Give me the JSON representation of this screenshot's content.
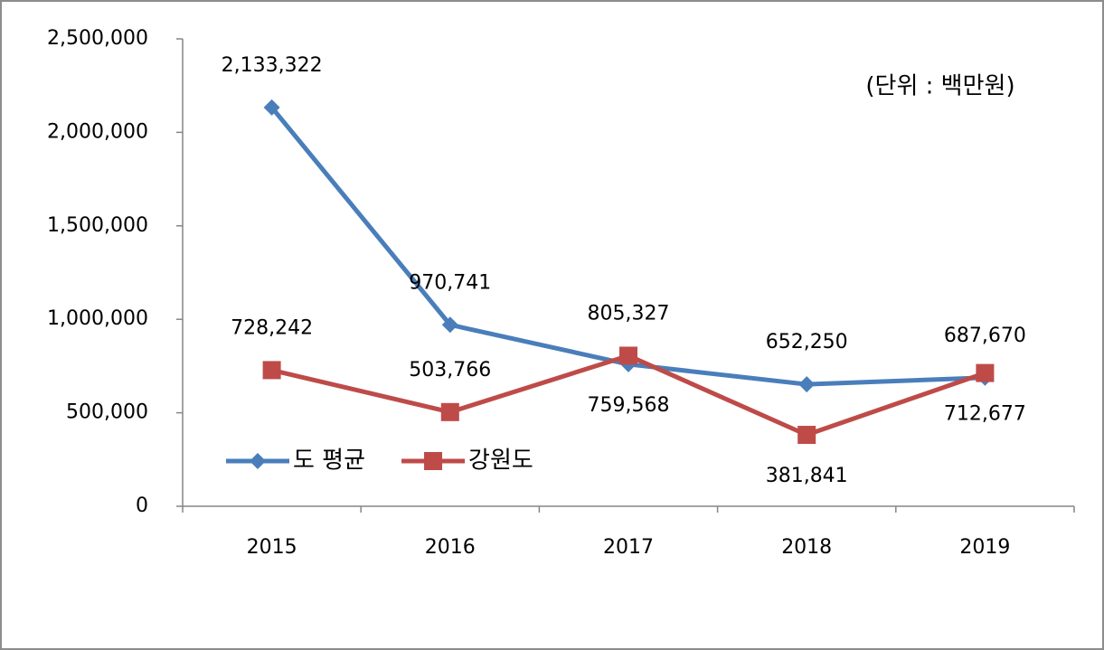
{
  "chart_data": {
    "type": "line",
    "annotation": "(단위 : 백만원)",
    "categories": [
      "2015",
      "2016",
      "2017",
      "2018",
      "2019"
    ],
    "series": [
      {
        "name": "도 평균",
        "color": "#4a7ebb",
        "marker": "diamond",
        "values": [
          2133322,
          970741,
          759568,
          652250,
          687670
        ],
        "value_labels": [
          "2,133,322",
          "970,741",
          "759,568",
          "652,250",
          "687,670"
        ]
      },
      {
        "name": "강원도",
        "color": "#be4b48",
        "marker": "square",
        "values": [
          728242,
          503766,
          805327,
          381841,
          712677
        ],
        "value_labels": [
          "728,242",
          "503,766",
          "805,327",
          "381,841",
          "712,677"
        ]
      }
    ],
    "ylim": [
      0,
      2500000
    ],
    "yticks": [
      0,
      {
        "value": 500000,
        "label": "500,000"
      },
      {
        "value": 1000000,
        "label": "1,000,000"
      },
      {
        "value": 1500000,
        "label": "1,500,000"
      },
      {
        "value": 2000000,
        "label": "2,000,000"
      },
      {
        "value": 2500000,
        "label": "2,500,000"
      }
    ],
    "grid": false,
    "legend": "lower left"
  }
}
